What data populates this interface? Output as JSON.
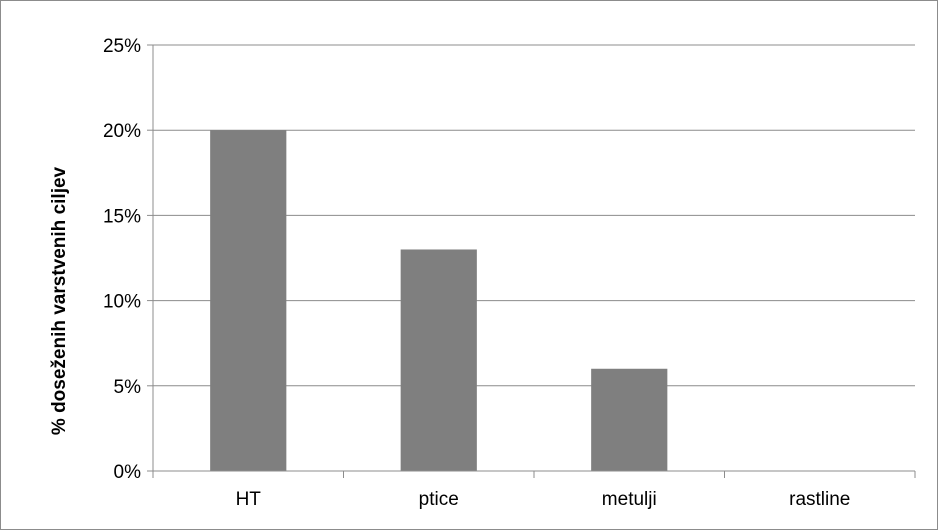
{
  "chart_data": {
    "type": "bar",
    "title": "",
    "xlabel": "",
    "ylabel": "% doseženih varstvenih ciljev",
    "categories": [
      "HT",
      "ptice",
      "metulji",
      "rastline"
    ],
    "values": [
      20,
      13,
      6,
      0
    ],
    "ylim": [
      0,
      25
    ],
    "yticks": [
      0,
      5,
      10,
      15,
      20,
      25
    ],
    "ytick_labels": [
      "0%",
      "5%",
      "10%",
      "15%",
      "20%",
      "25%"
    ],
    "grid": true,
    "legend": "none",
    "colors": {
      "bar": "#7f7f7f",
      "grid": "#8c8c8c",
      "axis": "#8c8c8c"
    }
  }
}
